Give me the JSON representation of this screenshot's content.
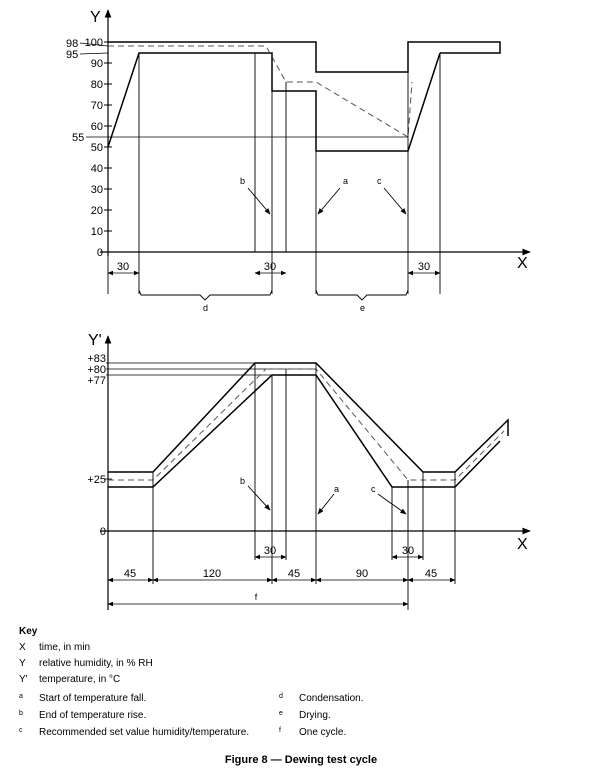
{
  "top_chart": {
    "y_axis_label": "Y",
    "x_axis_label": "X",
    "y_ticks": [
      "0",
      "10",
      "20",
      "30",
      "40",
      "50",
      "60",
      "70",
      "80",
      "90",
      "100"
    ],
    "y_marks": [
      "98",
      "95",
      "55"
    ],
    "arrow_labels": {
      "b": "b",
      "a": "a",
      "c": "c"
    },
    "dimensions": [
      "30",
      "30",
      "30"
    ],
    "brace_labels": {
      "d": "d",
      "e": "e"
    }
  },
  "bottom_chart": {
    "y_axis_label": "Y'",
    "x_axis_label": "X",
    "y_ticks": [
      "+83",
      "+80",
      "+77",
      "+25",
      "0"
    ],
    "arrow_labels": {
      "b": "b",
      "a": "a",
      "c": "c"
    },
    "dimensions": [
      "45",
      "120",
      "45",
      "90",
      "45",
      "30",
      "30"
    ],
    "cycle_label": "f"
  },
  "key": {
    "title": "Key",
    "axes": [
      {
        "symbol": "X",
        "desc": "time, in min"
      },
      {
        "symbol": "Y",
        "desc": "relative humidity, in % RH"
      },
      {
        "symbol": "Y'",
        "desc": "temperature, in °C"
      }
    ],
    "notes_left": [
      {
        "symbol": "a",
        "desc": "Start of temperature fall."
      },
      {
        "symbol": "b",
        "desc": "End of temperature rise."
      },
      {
        "symbol": "c",
        "desc": "Recommended set value humidity/temperature."
      }
    ],
    "notes_right": [
      {
        "symbol": "d",
        "desc": "Condensation."
      },
      {
        "symbol": "e",
        "desc": "Drying."
      },
      {
        "symbol": "f",
        "desc": "One cycle."
      }
    ]
  },
  "caption": "Figure 8 — Dewing test cycle"
}
